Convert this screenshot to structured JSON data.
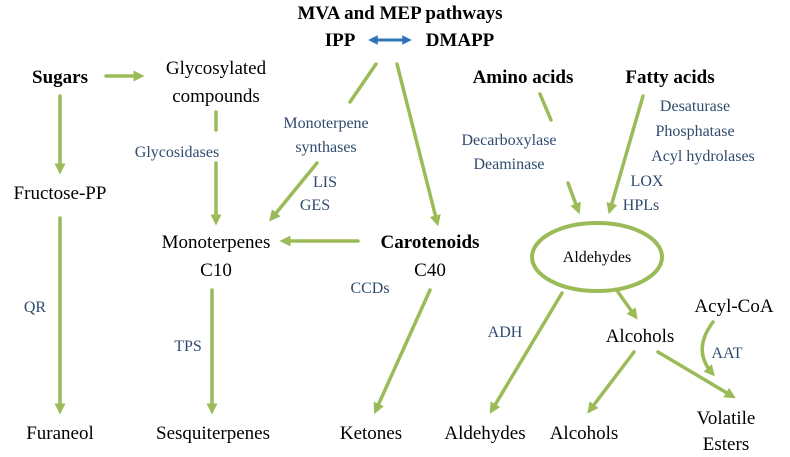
{
  "colors": {
    "arrow": "#9bbb59",
    "enzyme_text": "#2f4b6e",
    "double_arrow": "#2e75b6",
    "text": "#000000"
  },
  "nodes": {
    "mva_mep": "MVA and MEP pathways",
    "ipp": "IPP",
    "dmapp": "DMAPP",
    "sugars": "Sugars",
    "glycosylated_line1": "Glycosylated",
    "glycosylated_line2": "compounds",
    "amino_acids": "Amino acids",
    "fatty_acids": "Fatty acids",
    "fructose_pp": "Fructose-PP",
    "monoterpenes_line1": "Monoterpenes",
    "monoterpenes_line2": "C10",
    "carotenoids_line1": "Carotenoids",
    "carotenoids_line2": "C40",
    "aldehydes_center": "Aldehydes",
    "acyl_coa": "Acyl-CoA",
    "alcohols_mid": "Alcohols",
    "furaneol": "Furaneol",
    "sesquiterpenes": "Sesquiterpenes",
    "ketones": "Ketones",
    "aldehydes_bottom": "Aldehydes",
    "alcohols_bottom": "Alcohols",
    "volatile_esters_line1": "Volatile",
    "volatile_esters_line2": "Esters"
  },
  "enzymes": {
    "glycosidases": "Glycosidases",
    "monoterpene_synthases_line1": "Monoterpene",
    "monoterpene_synthases_line2": "synthases",
    "lis": "LIS",
    "ges": "GES",
    "decarboxylase": "Decarboxylase",
    "deaminase": "Deaminase",
    "desaturase": "Desaturase",
    "phosphatase": "Phosphatase",
    "acyl_hydrolases": "Acyl hydrolases",
    "lox": "LOX",
    "hpls": "HPLs",
    "qr": "QR",
    "tps": "TPS",
    "ccds": "CCDs",
    "adh": "ADH",
    "aat": "AAT"
  }
}
